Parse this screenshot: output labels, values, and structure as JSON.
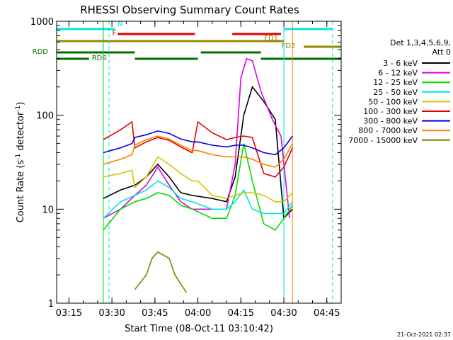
{
  "chart_data": {
    "type": "line",
    "title": "RHESSI Observing Summary Count Rates",
    "xlabel": "Start Time (08-Oct-11 03:10:42)",
    "ylabel": "Count Rate (s⁻¹ detector⁻¹)",
    "ylabel_main": "Count Rate (s",
    "ylabel_sup1": "-1",
    "ylabel_mid": " detector",
    "ylabel_sup2": "-1",
    "ylabel_end": ")",
    "x_scale": "time (minutes)",
    "y_scale": "log",
    "xlim": [
      "03:10:42",
      "04:50"
    ],
    "ylim": [
      1,
      1000
    ],
    "x_ticks": [
      "03:15",
      "03:30",
      "03:45",
      "04:00",
      "04:15",
      "04:30",
      "04:45"
    ],
    "y_ticks": [
      "1",
      "10",
      "100",
      "1000"
    ],
    "timestamp": "21-Oct-2021 02:37",
    "legend": {
      "header1": "Det 1,3,4,5,6,9,",
      "header2": "Att 0",
      "placement": "right"
    },
    "flags": [
      {
        "name": "N",
        "color": "#00e5e5",
        "segments": [
          [
            "03:10:42",
            "03:31"
          ],
          [
            "04:30",
            "04:47"
          ]
        ]
      },
      {
        "name": "F",
        "color": "#e00000",
        "segments": [
          [
            "03:32",
            "03:59"
          ],
          [
            "04:12",
            "04:29"
          ]
        ]
      },
      {
        "name": "FD1",
        "color": "#9b8500",
        "segments": [
          [
            "03:10:42",
            "04:30"
          ]
        ]
      },
      {
        "name": "FD2",
        "color": "#9b8500",
        "segments": [
          [
            "04:37",
            "04:50"
          ]
        ]
      },
      {
        "name": "RDD",
        "color": "#007000",
        "segments": [
          [
            "03:10:42",
            "03:38"
          ],
          [
            "04:01",
            "04:22"
          ]
        ]
      },
      {
        "name": "RD6",
        "color": "#007000",
        "segments": [
          [
            "03:10:42",
            "03:22"
          ],
          [
            "03:38",
            "04:00"
          ],
          [
            "04:22",
            "04:50"
          ]
        ]
      }
    ],
    "series": [
      {
        "name": "3 - 6 keV",
        "color": "#000000",
        "x": [
          "03:27",
          "03:33",
          "03:38",
          "03:42",
          "03:46",
          "03:50",
          "03:54",
          "03:58",
          "04:05",
          "04:10",
          "04:13",
          "04:16",
          "04:19",
          "04:23",
          "04:27",
          "04:30",
          "04:33"
        ],
        "values": [
          13,
          16,
          18,
          22,
          30,
          22,
          15,
          14,
          13,
          12,
          22,
          100,
          200,
          140,
          90,
          8,
          10
        ]
      },
      {
        "name": "6 - 12 keV",
        "color": "#e000e0",
        "x": [
          "03:27",
          "03:33",
          "03:38",
          "03:42",
          "03:46",
          "03:50",
          "03:54",
          "03:58",
          "04:05",
          "04:10",
          "04:13",
          "04:15",
          "04:17",
          "04:19",
          "04:22",
          "04:26",
          "04:29",
          "04:32"
        ],
        "values": [
          8,
          10,
          14,
          18,
          28,
          18,
          12,
          10,
          10,
          10,
          30,
          250,
          400,
          380,
          180,
          90,
          60,
          8
        ]
      },
      {
        "name": "12 - 25 keV",
        "color": "#00dd00",
        "x": [
          "03:27",
          "03:33",
          "03:38",
          "03:42",
          "03:46",
          "03:50",
          "03:54",
          "03:58",
          "04:05",
          "04:10",
          "04:13",
          "04:16",
          "04:19",
          "04:23",
          "04:27",
          "04:30",
          "04:33"
        ],
        "values": [
          6,
          10,
          12,
          13,
          15,
          14,
          11,
          10,
          8,
          8,
          14,
          50,
          20,
          7,
          6,
          8,
          11
        ]
      },
      {
        "name": "25 - 50 keV",
        "color": "#00e5e5",
        "x": [
          "03:27",
          "03:33",
          "03:38",
          "03:42",
          "03:46",
          "03:50",
          "03:54",
          "03:58",
          "04:05",
          "04:10",
          "04:13",
          "04:16",
          "04:19",
          "04:23",
          "04:27",
          "04:30",
          "04:33"
        ],
        "values": [
          8,
          12,
          14,
          16,
          20,
          17,
          13,
          12,
          10,
          10,
          12,
          16,
          10,
          9,
          9,
          9,
          12
        ]
      },
      {
        "name": "50 - 100 keV",
        "color": "#d4c400",
        "x": [
          "03:27",
          "03:33",
          "03:37",
          "03:38",
          "03:42",
          "03:46",
          "03:50",
          "03:54",
          "03:58",
          "04:00",
          "04:05",
          "04:10",
          "04:13",
          "04:16",
          "04:19",
          "04:23",
          "04:27",
          "04:30",
          "04:33"
        ],
        "values": [
          22,
          24,
          26,
          17,
          22,
          36,
          30,
          24,
          20,
          20,
          14,
          13,
          14,
          15,
          15,
          14,
          12,
          12,
          15
        ]
      },
      {
        "name": "100 - 300 keV",
        "color": "#e00000",
        "x": [
          "03:27",
          "03:33",
          "03:37",
          "03:38",
          "03:42",
          "03:46",
          "03:50",
          "03:54",
          "03:58",
          "04:00",
          "04:05",
          "04:10",
          "04:13",
          "04:16",
          "04:19",
          "04:23",
          "04:27",
          "04:30",
          "04:33"
        ],
        "values": [
          55,
          70,
          85,
          45,
          52,
          58,
          54,
          46,
          40,
          85,
          65,
          55,
          58,
          60,
          58,
          24,
          22,
          28,
          45
        ]
      },
      {
        "name": "300 - 800 keV",
        "color": "#0000e0",
        "x": [
          "03:27",
          "03:33",
          "03:37",
          "03:38",
          "03:42",
          "03:46",
          "03:50",
          "03:54",
          "03:58",
          "04:00",
          "04:05",
          "04:10",
          "04:13",
          "04:16",
          "04:19",
          "04:23",
          "04:27",
          "04:30",
          "04:33"
        ],
        "values": [
          40,
          45,
          50,
          58,
          62,
          68,
          64,
          56,
          52,
          52,
          48,
          46,
          48,
          48,
          45,
          40,
          38,
          45,
          60
        ]
      },
      {
        "name": "800 - 7000 keV",
        "color": "#ff7f00",
        "x": [
          "03:27",
          "03:33",
          "03:37",
          "03:38",
          "03:42",
          "03:46",
          "03:50",
          "03:54",
          "03:58",
          "04:00",
          "04:05",
          "04:10",
          "04:13",
          "04:16",
          "04:19",
          "04:23",
          "04:27",
          "04:30",
          "04:33"
        ],
        "values": [
          30,
          34,
          38,
          48,
          55,
          60,
          56,
          48,
          42,
          42,
          38,
          36,
          36,
          36,
          34,
          30,
          28,
          34,
          50
        ]
      },
      {
        "name": "7000 - 15000 keV",
        "color": "#808000",
        "x": [
          "03:38",
          "03:42",
          "03:44",
          "03:46",
          "03:50",
          "03:52",
          "03:54",
          "03:56"
        ],
        "values": [
          1.4,
          2,
          3,
          3.5,
          3,
          2,
          1.6,
          1.3
        ]
      }
    ],
    "vlines": [
      {
        "x": "03:27",
        "color": "#00dd00",
        "style": "solid"
      },
      {
        "x": "03:29",
        "color": "#00e5e5",
        "style": "dashed"
      },
      {
        "x": "04:30",
        "color": "#00e5e5",
        "style": "solid"
      },
      {
        "x": "04:33",
        "color": "#ff7f00",
        "style": "solid"
      },
      {
        "x": "04:47",
        "color": "#00e5e5",
        "style": "dashed"
      }
    ]
  }
}
